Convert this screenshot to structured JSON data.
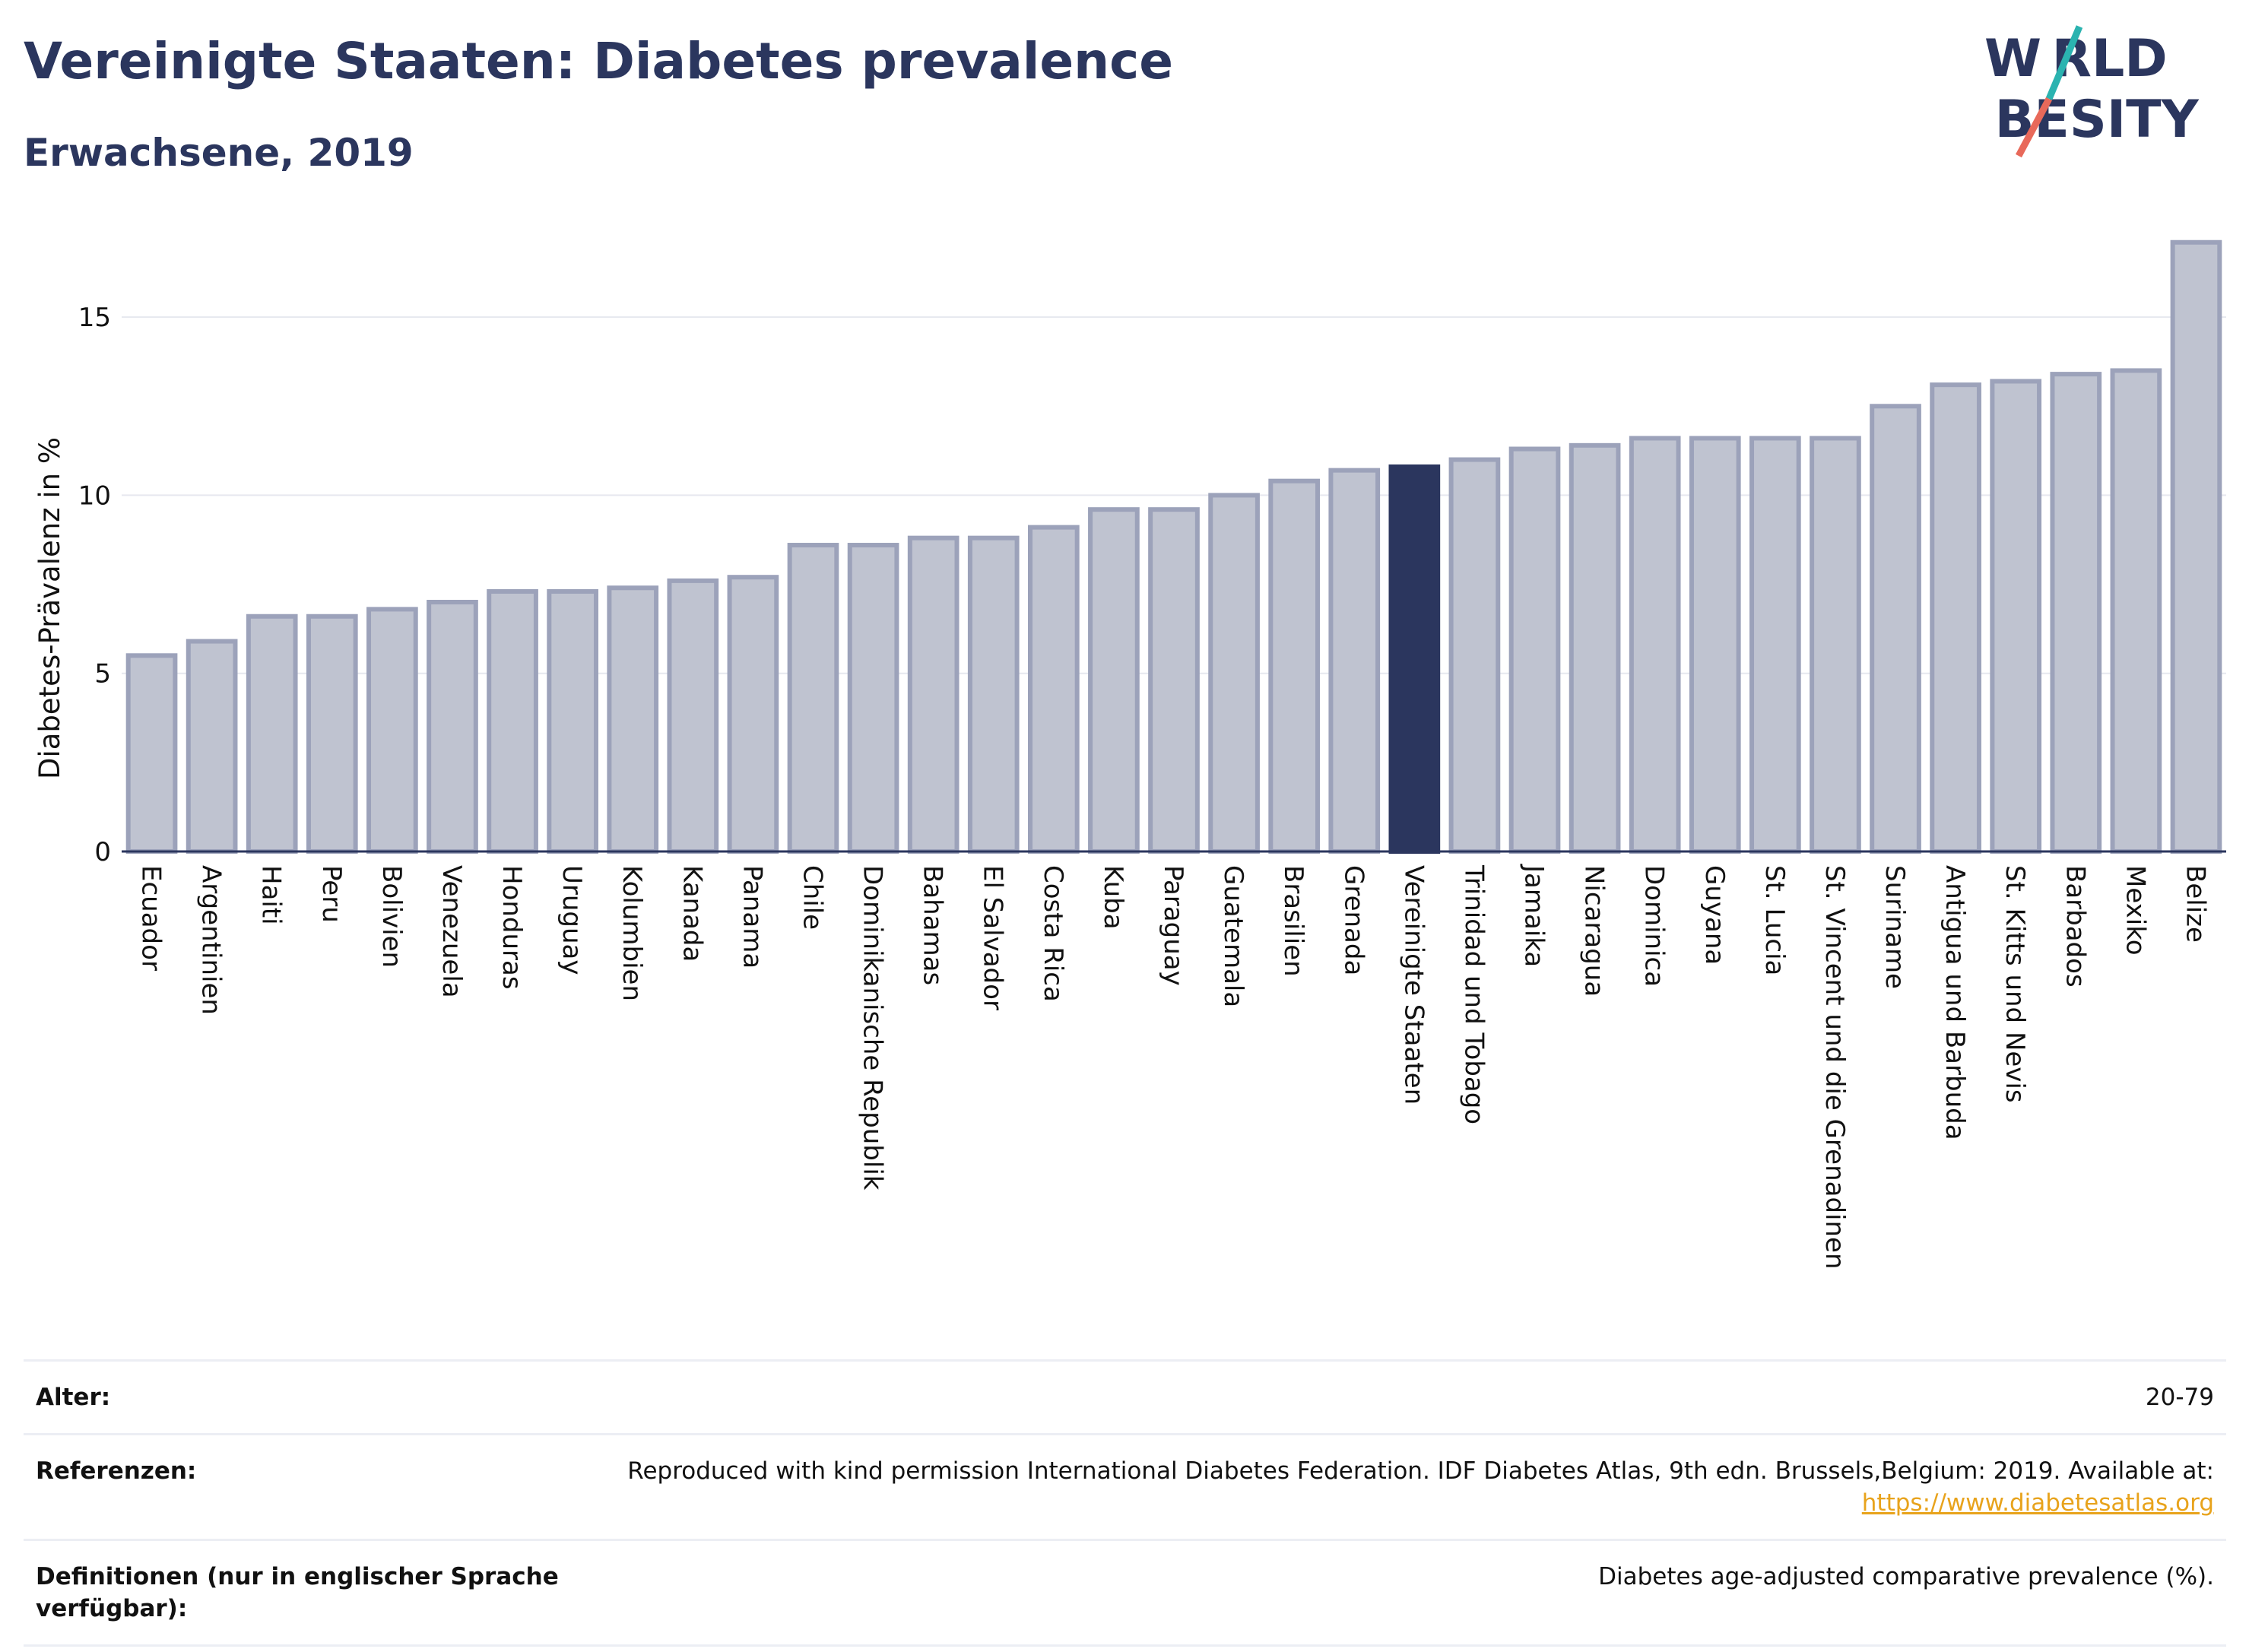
{
  "header": {
    "title": "Vereinigte Staaten: Diabetes prevalence",
    "subtitle": "Erwachsene, 2019"
  },
  "logo": {
    "line1": "W RLD",
    "line2": " BESITY",
    "colors": {
      "text": "#2b365e",
      "slash_top": "#2bb3b0",
      "slash_bottom": "#e8695a"
    }
  },
  "chart_data": {
    "type": "bar",
    "title": "",
    "xlabel": "",
    "ylabel": "Diabetes-Prävalenz in %",
    "ylim": [
      0,
      17.5
    ],
    "yticks": [
      0,
      5,
      10,
      15
    ],
    "grid": true,
    "highlight": "Vereinigte Staaten",
    "colors": {
      "bar": "#bfc3d0",
      "bar_edge": "#9ca2ba",
      "highlight": "#2b365e",
      "grid": "#e6e8ef",
      "axis": "#2b365e"
    },
    "categories": [
      "Ecuador",
      "Argentinien",
      "Haiti",
      "Peru",
      "Bolivien",
      "Venezuela",
      "Honduras",
      "Uruguay",
      "Kolumbien",
      "Kanada",
      "Panama",
      "Chile",
      "Dominikanische Republik",
      "Bahamas",
      "El Salvador",
      "Costa Rica",
      "Kuba",
      "Paraguay",
      "Guatemala",
      "Brasilien",
      "Grenada",
      "Vereinigte Staaten",
      "Trinidad und Tobago",
      "Jamaika",
      "Nicaragua",
      "Dominica",
      "Guyana",
      "St. Lucia",
      "St. Vincent und die Grenadinen",
      "Suriname",
      "Antigua und Barbuda",
      "St. Kitts und Nevis",
      "Barbados",
      "Mexiko",
      "Belize"
    ],
    "values": [
      5.5,
      5.9,
      6.6,
      6.6,
      6.8,
      7.0,
      7.3,
      7.3,
      7.4,
      7.6,
      7.7,
      8.6,
      8.6,
      8.8,
      8.8,
      9.1,
      9.6,
      9.6,
      10.0,
      10.4,
      10.7,
      10.8,
      11.0,
      11.3,
      11.4,
      11.6,
      11.6,
      11.6,
      11.6,
      12.5,
      13.1,
      13.2,
      13.4,
      13.5,
      17.1
    ]
  },
  "info": {
    "rows": [
      {
        "label": "Alter:",
        "value": "20-79"
      },
      {
        "label": "Referenzen:",
        "value": "Reproduced with kind permission International Diabetes Federation. IDF Diabetes Atlas, 9th edn. Brussels,Belgium: 2019. Available at:",
        "link": "https://www.diabetesatlas.org"
      },
      {
        "label": "Definitionen (nur in englischer Sprache verfügbar):",
        "value": "Diabetes age-adjusted comparative prevalence (%)."
      }
    ]
  }
}
